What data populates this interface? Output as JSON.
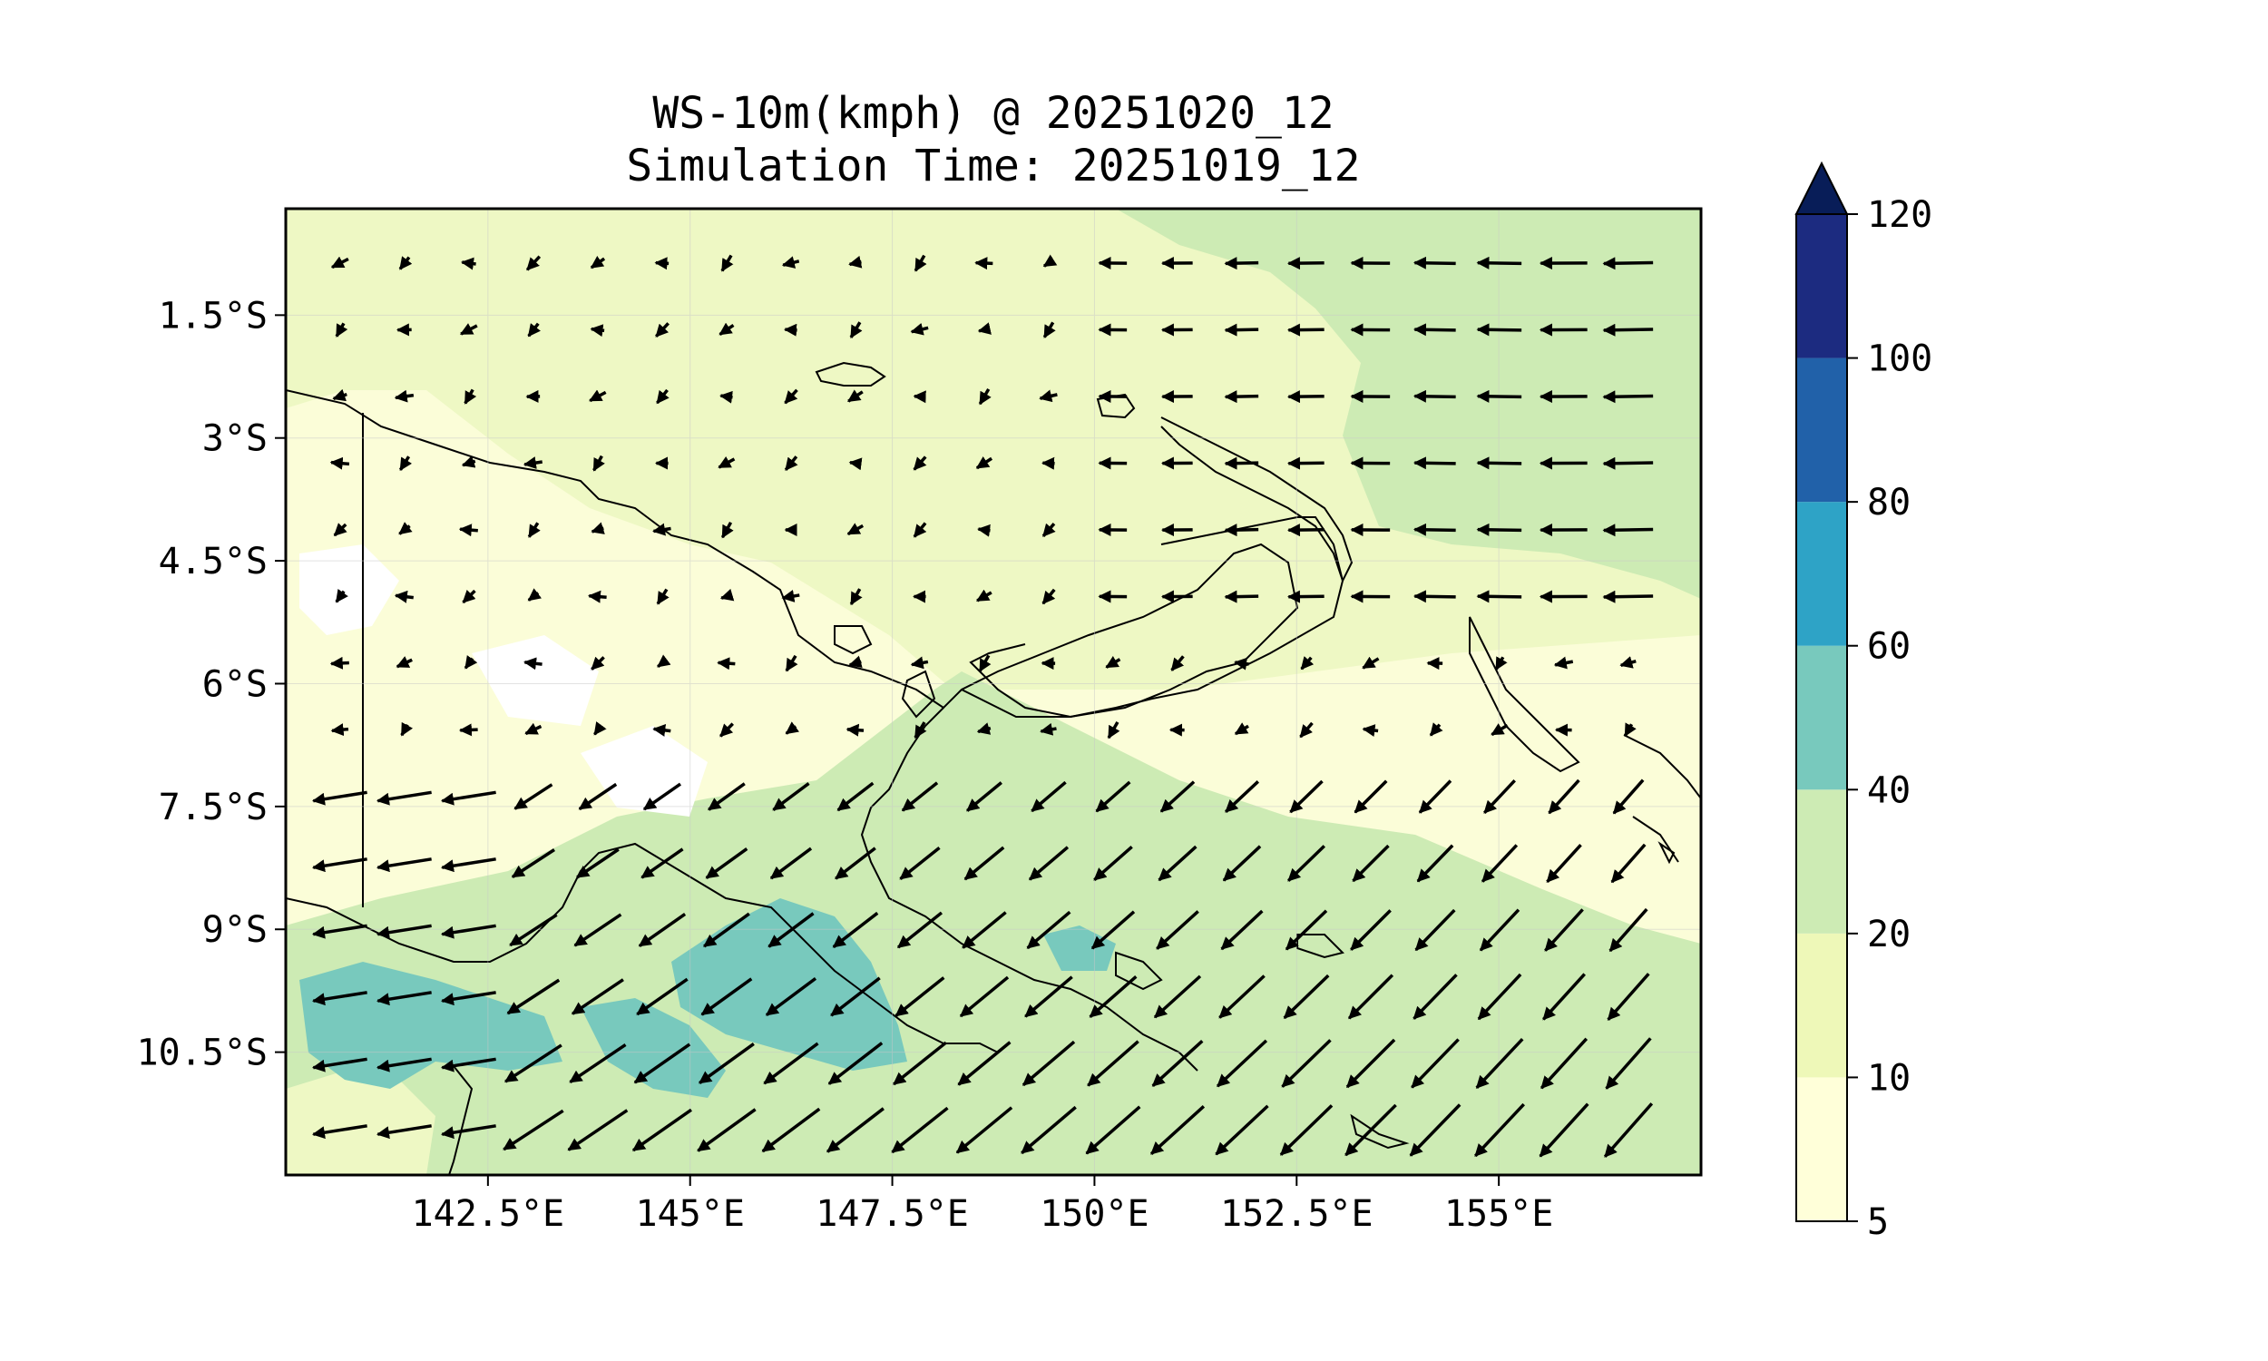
{
  "title": {
    "line1": "WS-10m(kmph) @ 20251020_12",
    "line2": "Simulation Time: 20251019_12"
  },
  "map": {
    "lon_range": [
      140.0,
      157.5
    ],
    "lat_range": [
      -12.0,
      -0.2
    ],
    "x_ticks": [
      {
        "value": 142.5,
        "label": "142.5°E"
      },
      {
        "value": 145.0,
        "label": "145°E"
      },
      {
        "value": 147.5,
        "label": "147.5°E"
      },
      {
        "value": 150.0,
        "label": "150°E"
      },
      {
        "value": 152.5,
        "label": "152.5°E"
      },
      {
        "value": 155.0,
        "label": "155°E"
      }
    ],
    "y_ticks": [
      {
        "value": -1.5,
        "label": "1.5°S"
      },
      {
        "value": -3.0,
        "label": "3°S"
      },
      {
        "value": -4.5,
        "label": "4.5°S"
      },
      {
        "value": -6.0,
        "label": "6°S"
      },
      {
        "value": -7.5,
        "label": "7.5°S"
      },
      {
        "value": -9.0,
        "label": "9°S"
      },
      {
        "value": -10.5,
        "label": "10.5°S"
      }
    ]
  },
  "colorbar": {
    "levels": [
      {
        "label": "5",
        "color": "#ffffd9"
      },
      {
        "label": "10",
        "color": "#eef8b8"
      },
      {
        "label": "20",
        "color": "#cdebb4"
      },
      {
        "label": "40",
        "color": "#78c9bd"
      },
      {
        "label": "60",
        "color": "#2ea3c6"
      },
      {
        "label": "80",
        "color": "#2161a9"
      },
      {
        "label": "100",
        "color": "#1c2b80"
      },
      {
        "label": "120",
        "color": "#081d58"
      }
    ],
    "extend": "max"
  }
}
